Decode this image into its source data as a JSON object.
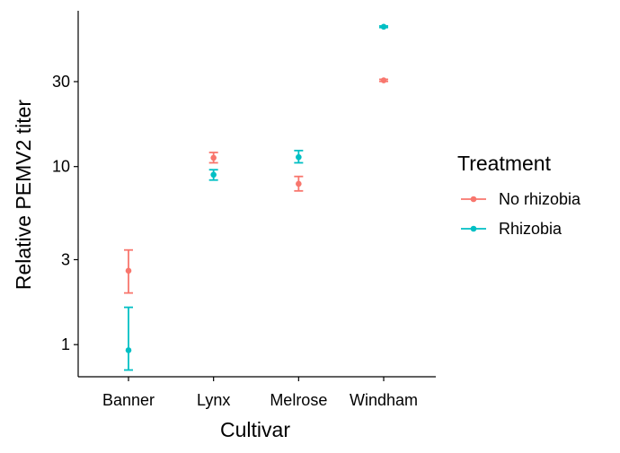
{
  "chart_data": {
    "type": "scatter",
    "title": "",
    "xlabel": "Cultivar",
    "ylabel": "Relative PEMV2 titer",
    "y_scale": "log10",
    "ylim": [
      0.66,
      75
    ],
    "categories": [
      "Banner",
      "Lynx",
      "Melrose",
      "Windham"
    ],
    "y_ticks": [
      1,
      3,
      10,
      30
    ],
    "y_tick_labels": [
      "1",
      "3",
      "10",
      "30"
    ],
    "legend": {
      "title": "Treatment",
      "placement": "right",
      "entries": [
        "No rhizobia",
        "Rhizobia"
      ]
    },
    "series": [
      {
        "name": "No rhizobia",
        "color": "#F8766D",
        "points": [
          {
            "x": "Banner",
            "y": 2.6,
            "ymin": 1.95,
            "ymax": 3.4
          },
          {
            "x": "Lynx",
            "y": 11.2,
            "ymin": 10.5,
            "ymax": 12.0
          },
          {
            "x": "Melrose",
            "y": 8.0,
            "ymin": 7.3,
            "ymax": 8.8
          },
          {
            "x": "Windham",
            "y": 30.5,
            "ymin": 30.1,
            "ymax": 30.9
          }
        ]
      },
      {
        "name": "Rhizobia",
        "color": "#00BFC4",
        "points": [
          {
            "x": "Banner",
            "y": 0.93,
            "ymin": 0.72,
            "ymax": 1.62
          },
          {
            "x": "Lynx",
            "y": 9.0,
            "ymin": 8.4,
            "ymax": 9.6
          },
          {
            "x": "Melrose",
            "y": 11.3,
            "ymin": 10.5,
            "ymax": 12.3
          },
          {
            "x": "Windham",
            "y": 61.0,
            "ymin": 60.4,
            "ymax": 61.6
          }
        ]
      }
    ],
    "grid": false
  }
}
